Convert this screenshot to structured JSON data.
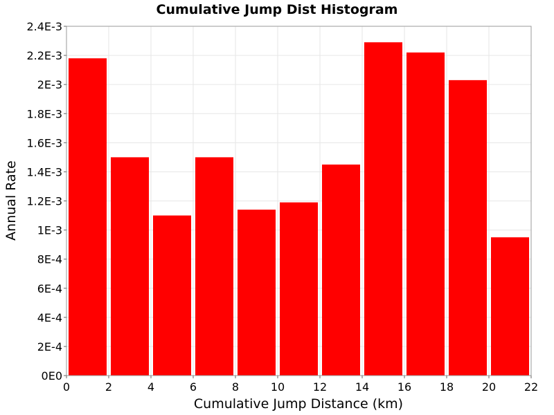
{
  "chart_data": {
    "type": "bar",
    "title": "Cumulative Jump Dist Histogram",
    "xlabel": "Cumulative Jump Distance (km)",
    "ylabel": "Annual Rate",
    "xlim": [
      0,
      22
    ],
    "ylim": [
      0,
      0.0024
    ],
    "x_ticks": [
      0,
      2,
      4,
      6,
      8,
      10,
      12,
      14,
      16,
      18,
      20,
      22
    ],
    "x_tick_labels": [
      "0",
      "2",
      "4",
      "6",
      "8",
      "10",
      "12",
      "14",
      "16",
      "18",
      "20",
      "22"
    ],
    "y_ticks": [
      0,
      0.0002,
      0.0004,
      0.0006,
      0.0008,
      0.001,
      0.0012,
      0.0014,
      0.0016,
      0.0018,
      0.002,
      0.0022,
      0.0024
    ],
    "y_tick_labels": [
      "0E0",
      "2E-4",
      "4E-4",
      "6E-4",
      "8E-4",
      "1E-3",
      "1.2E-3",
      "1.4E-3",
      "1.6E-3",
      "1.8E-3",
      "2E-3",
      "2.2E-3",
      "2.4E-3"
    ],
    "grid": true,
    "bar_color": "#ff0000",
    "bins": [
      {
        "x_start": 0,
        "x_end": 2,
        "value": 0.00218
      },
      {
        "x_start": 2,
        "x_end": 4,
        "value": 0.0015
      },
      {
        "x_start": 4,
        "x_end": 6,
        "value": 0.0011
      },
      {
        "x_start": 6,
        "x_end": 8,
        "value": 0.0015
      },
      {
        "x_start": 8,
        "x_end": 10,
        "value": 0.00114
      },
      {
        "x_start": 10,
        "x_end": 12,
        "value": 0.00119
      },
      {
        "x_start": 12,
        "x_end": 14,
        "value": 0.00145
      },
      {
        "x_start": 14,
        "x_end": 16,
        "value": 0.00229
      },
      {
        "x_start": 16,
        "x_end": 18,
        "value": 0.00222
      },
      {
        "x_start": 18,
        "x_end": 20,
        "value": 0.00203
      },
      {
        "x_start": 20,
        "x_end": 22,
        "value": 0.00095
      }
    ]
  }
}
